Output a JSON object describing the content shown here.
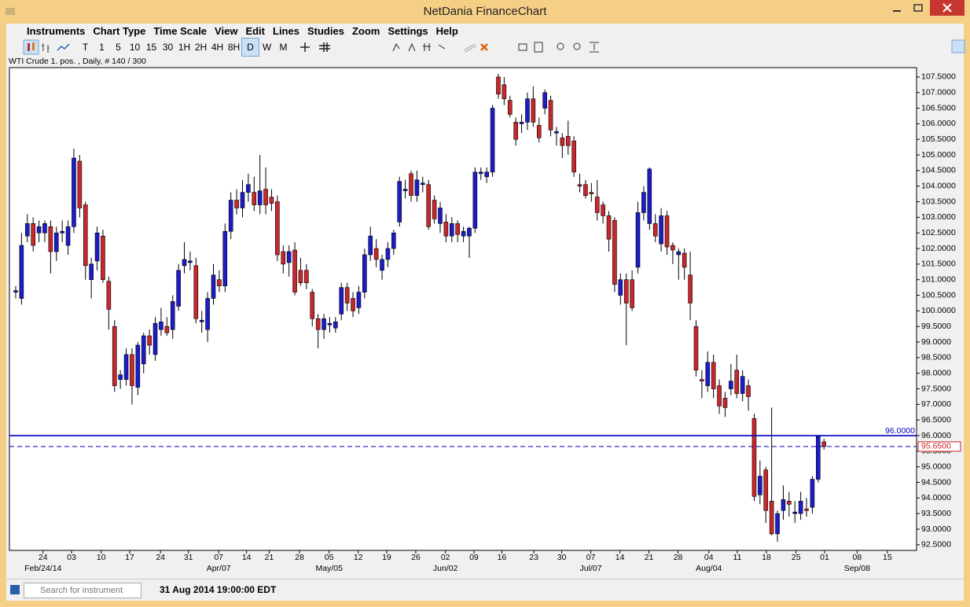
{
  "window": {
    "title": "NetDania FinanceChart"
  },
  "menu": [
    "Instruments",
    "Chart Type",
    "Time Scale",
    "View",
    "Edit",
    "Lines",
    "Studies",
    "Zoom",
    "Settings",
    "Help"
  ],
  "toolbar": {
    "periods": [
      "T",
      "1",
      "5",
      "10",
      "15",
      "30",
      "1H",
      "2H",
      "4H",
      "8H",
      "D",
      "W",
      "M"
    ],
    "active_index": 10
  },
  "info": "WTI Crude 1. pos. , Daily, # 140 / 300",
  "status": {
    "search_placeholder": "Search for instrument",
    "datetime": "31 Aug 2014 19:00:00 EDT"
  },
  "chart_data": {
    "type": "candlestick",
    "up_color": "#1c1cc8",
    "down_color": "#c8282d",
    "ylim": [
      92.32,
      107.8
    ],
    "xlim": [
      -1.08,
      154.92
    ],
    "yticks": [
      {
        "value": 92.5,
        "label": "92.5000"
      },
      {
        "value": 93,
        "label": "93.0000"
      },
      {
        "value": 93.5,
        "label": "93.5000"
      },
      {
        "value": 94,
        "label": "94.0000"
      },
      {
        "value": 94.5,
        "label": "94.5000"
      },
      {
        "value": 95,
        "label": "95.0000"
      },
      {
        "value": 95.5,
        "label": "95.5000"
      },
      {
        "value": 96,
        "label": "96.0000"
      },
      {
        "value": 96.5,
        "label": "96.5000"
      },
      {
        "value": 97,
        "label": "97.0000"
      },
      {
        "value": 97.5,
        "label": "97.5000"
      },
      {
        "value": 98,
        "label": "98.0000"
      },
      {
        "value": 98.5,
        "label": "98.5000"
      },
      {
        "value": 99,
        "label": "99.0000"
      },
      {
        "value": 99.5,
        "label": "99.5000"
      },
      {
        "value": 100,
        "label": "100.0000"
      },
      {
        "value": 100.5,
        "label": "100.5000"
      },
      {
        "value": 101,
        "label": "101.0000"
      },
      {
        "value": 101.5,
        "label": "101.5000"
      },
      {
        "value": 102,
        "label": "102.0000"
      },
      {
        "value": 102.5,
        "label": "102.5000"
      },
      {
        "value": 103,
        "label": "103.0000"
      },
      {
        "value": 103.5,
        "label": "103.5000"
      },
      {
        "value": 104,
        "label": "104.0000"
      },
      {
        "value": 104.5,
        "label": "104.5000"
      },
      {
        "value": 105,
        "label": "105.0000"
      },
      {
        "value": 105.5,
        "label": "105.5000"
      },
      {
        "value": 106,
        "label": "106.0000"
      },
      {
        "value": 106.5,
        "label": "106.5000"
      },
      {
        "value": 107,
        "label": "107.0000"
      },
      {
        "value": 107.5,
        "label": "107.5000"
      }
    ],
    "xticks": [
      {
        "value": 4.7,
        "label": "24"
      },
      {
        "value": 9.6,
        "label": "03"
      },
      {
        "value": 14.7,
        "label": "10"
      },
      {
        "value": 19.6,
        "label": "17"
      },
      {
        "value": 24.9,
        "label": "24"
      },
      {
        "value": 29.7,
        "label": "31"
      },
      {
        "value": 34.9,
        "label": "07"
      },
      {
        "value": 39.7,
        "label": "14"
      },
      {
        "value": 43.6,
        "label": "21"
      },
      {
        "value": 48.8,
        "label": "28"
      },
      {
        "value": 53.9,
        "label": "05"
      },
      {
        "value": 58.9,
        "label": "12"
      },
      {
        "value": 63.8,
        "label": "19"
      },
      {
        "value": 68.8,
        "label": "26"
      },
      {
        "value": 73.9,
        "label": "02"
      },
      {
        "value": 78.8,
        "label": "09"
      },
      {
        "value": 83.6,
        "label": "16"
      },
      {
        "value": 89.1,
        "label": "23"
      },
      {
        "value": 93.9,
        "label": "30"
      },
      {
        "value": 98.9,
        "label": "07"
      },
      {
        "value": 103.9,
        "label": "14"
      },
      {
        "value": 108.9,
        "label": "21"
      },
      {
        "value": 113.9,
        "label": "28"
      },
      {
        "value": 119.2,
        "label": "04"
      },
      {
        "value": 124.1,
        "label": "11"
      },
      {
        "value": 129.1,
        "label": "18"
      },
      {
        "value": 134.2,
        "label": "25"
      },
      {
        "value": 139.1,
        "label": "01"
      },
      {
        "value": 144.7,
        "label": "08"
      },
      {
        "value": 149.9,
        "label": "15"
      }
    ],
    "month_ticks": [
      {
        "value": 4.7,
        "label": "Feb/24/14"
      },
      {
        "value": 34.9,
        "label": "Apr/07"
      },
      {
        "value": 53.9,
        "label": "May/05"
      },
      {
        "value": 73.9,
        "label": "Jun/02"
      },
      {
        "value": 98.9,
        "label": "Jul/07"
      },
      {
        "value": 119.2,
        "label": "Aug/04"
      },
      {
        "value": 144.7,
        "label": "Sep/08"
      }
    ],
    "hlines": [
      {
        "value": 96,
        "label": "96.0000",
        "style": "solid",
        "color": "#0000c0"
      },
      {
        "value": 95.65,
        "label": "95.6500",
        "style": "dashed",
        "color": "#0000c0"
      }
    ],
    "ohlc": [
      [
        100.6,
        100.8,
        100.4,
        100.65
      ],
      [
        100.4,
        102.5,
        100.2,
        102.1
      ],
      [
        102.4,
        103.1,
        102.2,
        102.8
      ],
      [
        102.8,
        103.0,
        101.9,
        102.1
      ],
      [
        102.5,
        102.9,
        102.2,
        102.7
      ],
      [
        102.5,
        102.9,
        102.2,
        102.8
      ],
      [
        102.7,
        102.9,
        101.2,
        101.9
      ],
      [
        101.9,
        102.7,
        101.6,
        102.5
      ],
      [
        102.5,
        102.9,
        102.2,
        102.55
      ],
      [
        102.1,
        102.9,
        101.8,
        102.7
      ],
      [
        102.7,
        105.2,
        102.5,
        104.9
      ],
      [
        104.8,
        105.0,
        103.0,
        103.3
      ],
      [
        103.4,
        103.5,
        101.0,
        101.45
      ],
      [
        101.0,
        101.7,
        100.4,
        101.5
      ],
      [
        101.6,
        102.7,
        101.3,
        102.5
      ],
      [
        102.4,
        102.6,
        100.9,
        101.0
      ],
      [
        100.95,
        101.1,
        99.4,
        100.05
      ],
      [
        99.5,
        99.7,
        97.4,
        97.6
      ],
      [
        97.8,
        98.1,
        97.5,
        97.95
      ],
      [
        97.8,
        98.8,
        97.6,
        98.6
      ],
      [
        98.6,
        98.8,
        97.0,
        97.6
      ],
      [
        97.55,
        99.0,
        97.3,
        98.9
      ],
      [
        98.3,
        99.3,
        98.0,
        99.2
      ],
      [
        99.2,
        99.4,
        98.6,
        98.9
      ],
      [
        98.6,
        99.8,
        98.4,
        99.6
      ],
      [
        99.4,
        100.1,
        99.2,
        99.65
      ],
      [
        99.5,
        99.8,
        99.2,
        99.3
      ],
      [
        99.4,
        100.5,
        99.1,
        100.3
      ],
      [
        100.15,
        101.5,
        100.0,
        101.3
      ],
      [
        101.45,
        102.2,
        101.2,
        101.65
      ],
      [
        101.55,
        101.9,
        101.3,
        101.6
      ],
      [
        101.45,
        101.7,
        99.6,
        99.75
      ],
      [
        99.65,
        100.0,
        99.3,
        99.7
      ],
      [
        99.4,
        100.6,
        99.0,
        100.4
      ],
      [
        100.4,
        101.5,
        100.2,
        101.15
      ],
      [
        101.0,
        101.3,
        100.6,
        100.8
      ],
      [
        100.8,
        102.8,
        100.6,
        102.55
      ],
      [
        102.55,
        103.8,
        102.3,
        103.55
      ],
      [
        103.55,
        103.9,
        103.1,
        103.3
      ],
      [
        103.3,
        104.2,
        103.0,
        103.8
      ],
      [
        103.8,
        104.4,
        103.5,
        104.05
      ],
      [
        103.8,
        104.3,
        103.2,
        103.4
      ],
      [
        103.4,
        105.0,
        103.1,
        103.85
      ],
      [
        103.9,
        104.6,
        103.1,
        103.4
      ],
      [
        103.65,
        103.9,
        103.2,
        103.45
      ],
      [
        103.5,
        103.7,
        101.6,
        101.8
      ],
      [
        101.9,
        102.1,
        101.2,
        101.5
      ],
      [
        101.55,
        102.1,
        101.1,
        101.9
      ],
      [
        101.95,
        102.2,
        100.5,
        100.6
      ],
      [
        101.3,
        101.7,
        100.8,
        100.9
      ],
      [
        101.3,
        101.5,
        100.7,
        100.9
      ],
      [
        100.6,
        100.7,
        99.5,
        99.75
      ],
      [
        99.75,
        99.9,
        98.8,
        99.4
      ],
      [
        99.4,
        99.9,
        99.1,
        99.75
      ],
      [
        99.55,
        99.8,
        99.3,
        99.6
      ],
      [
        99.45,
        99.8,
        99.3,
        99.65
      ],
      [
        99.9,
        100.9,
        99.7,
        100.75
      ],
      [
        100.75,
        100.9,
        100.0,
        100.25
      ],
      [
        100.4,
        100.6,
        99.8,
        100.0
      ],
      [
        100.1,
        100.8,
        99.9,
        100.6
      ],
      [
        100.6,
        102.0,
        100.4,
        101.8
      ],
      [
        101.8,
        102.7,
        101.6,
        102.4
      ],
      [
        102.0,
        102.3,
        101.4,
        101.65
      ],
      [
        101.3,
        101.8,
        101.0,
        101.65
      ],
      [
        101.65,
        102.2,
        101.4,
        102.0
      ],
      [
        102.0,
        102.6,
        101.8,
        102.5
      ],
      [
        102.85,
        104.3,
        102.7,
        104.15
      ],
      [
        103.85,
        104.2,
        103.6,
        103.9
      ],
      [
        104.4,
        104.5,
        103.5,
        103.7
      ],
      [
        103.7,
        104.5,
        103.5,
        104.2
      ],
      [
        104.05,
        104.3,
        103.8,
        104.1
      ],
      [
        104.05,
        104.2,
        102.6,
        102.7
      ],
      [
        103.55,
        103.7,
        102.8,
        102.95
      ],
      [
        102.8,
        103.5,
        102.5,
        103.3
      ],
      [
        102.85,
        103.1,
        102.2,
        102.4
      ],
      [
        102.4,
        103.0,
        102.2,
        102.8
      ],
      [
        102.8,
        102.9,
        102.2,
        102.45
      ],
      [
        102.4,
        102.7,
        102.2,
        102.55
      ],
      [
        102.4,
        102.7,
        101.7,
        102.65
      ],
      [
        102.65,
        104.6,
        102.5,
        104.45
      ],
      [
        104.4,
        104.6,
        104.2,
        104.45
      ],
      [
        104.3,
        104.6,
        104.1,
        104.45
      ],
      [
        104.45,
        106.6,
        104.3,
        106.5
      ],
      [
        107.5,
        107.6,
        106.8,
        106.95
      ],
      [
        107.25,
        107.5,
        106.6,
        106.8
      ],
      [
        106.75,
        106.9,
        106.2,
        106.3
      ],
      [
        106.05,
        106.2,
        105.3,
        105.5
      ],
      [
        106.0,
        106.3,
        105.7,
        106.05
      ],
      [
        106.05,
        107.0,
        105.8,
        106.8
      ],
      [
        106.8,
        107.2,
        105.9,
        106.05
      ],
      [
        105.95,
        106.2,
        105.4,
        105.55
      ],
      [
        106.5,
        107.1,
        106.3,
        107.0
      ],
      [
        106.75,
        106.9,
        105.6,
        105.8
      ],
      [
        105.7,
        105.9,
        105.3,
        105.75
      ],
      [
        105.55,
        105.7,
        104.9,
        105.3
      ],
      [
        105.6,
        106.1,
        105.0,
        105.3
      ],
      [
        105.45,
        105.6,
        104.3,
        104.45
      ],
      [
        104.05,
        104.4,
        103.8,
        104.0
      ],
      [
        104.05,
        104.2,
        103.6,
        103.7
      ],
      [
        103.8,
        104.1,
        103.5,
        103.75
      ],
      [
        103.65,
        104.2,
        102.9,
        103.15
      ],
      [
        103.4,
        103.5,
        102.8,
        103.05
      ],
      [
        103.05,
        103.2,
        101.9,
        102.3
      ],
      [
        102.9,
        103.0,
        100.6,
        100.85
      ],
      [
        100.5,
        101.2,
        100.2,
        101.0
      ],
      [
        101.0,
        101.2,
        98.9,
        100.25
      ],
      [
        101.0,
        101.3,
        100.0,
        100.1
      ],
      [
        101.4,
        103.5,
        101.2,
        103.15
      ],
      [
        103.15,
        104.0,
        102.9,
        103.8
      ],
      [
        102.8,
        104.6,
        102.6,
        104.55
      ],
      [
        102.8,
        103.1,
        102.2,
        102.4
      ],
      [
        102.15,
        103.3,
        101.9,
        103.05
      ],
      [
        103.05,
        103.2,
        101.8,
        102.05
      ],
      [
        102.1,
        102.2,
        101.5,
        101.95
      ],
      [
        101.8,
        102.0,
        101.0,
        101.9
      ],
      [
        101.85,
        102.0,
        101.0,
        101.4
      ],
      [
        101.15,
        101.9,
        99.7,
        100.25
      ],
      [
        99.5,
        99.7,
        97.9,
        98.1
      ],
      [
        97.8,
        98.1,
        97.2,
        97.75
      ],
      [
        97.6,
        98.7,
        97.4,
        98.35
      ],
      [
        98.35,
        98.6,
        97.2,
        97.5
      ],
      [
        97.6,
        97.8,
        96.7,
        96.95
      ],
      [
        97.2,
        97.4,
        96.6,
        96.9
      ],
      [
        97.5,
        98.3,
        97.3,
        97.75
      ],
      [
        98.1,
        98.6,
        97.2,
        97.35
      ],
      [
        97.35,
        98.1,
        97.1,
        97.9
      ],
      [
        97.6,
        97.8,
        96.8,
        97.25
      ],
      [
        96.55,
        96.7,
        93.9,
        94.05
      ],
      [
        94.1,
        95.2,
        93.8,
        94.7
      ],
      [
        94.9,
        95.0,
        93.2,
        93.6
      ],
      [
        93.9,
        96.9,
        92.8,
        92.85
      ],
      [
        92.85,
        93.6,
        92.6,
        93.5
      ],
      [
        93.6,
        94.4,
        93.3,
        93.95
      ],
      [
        93.9,
        94.2,
        93.4,
        93.8
      ],
      [
        93.5,
        93.9,
        93.2,
        93.55
      ],
      [
        93.5,
        94.2,
        93.3,
        93.9
      ],
      [
        93.65,
        94.0,
        93.4,
        93.6
      ],
      [
        93.7,
        94.7,
        93.5,
        94.6
      ],
      [
        94.6,
        96.0,
        94.5,
        95.98
      ],
      [
        95.8,
        95.9,
        95.55,
        95.65
      ]
    ]
  }
}
